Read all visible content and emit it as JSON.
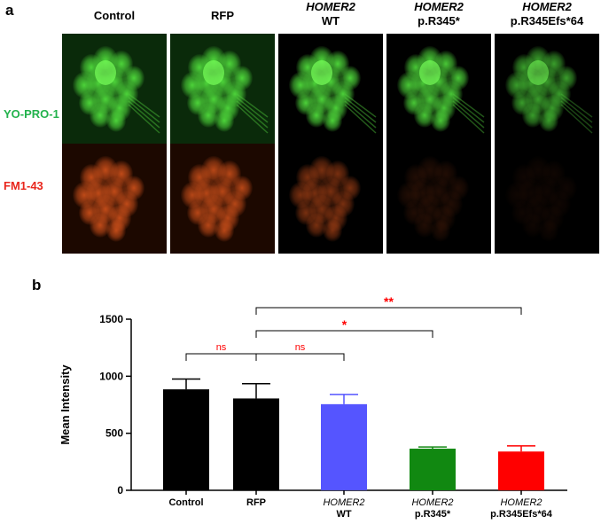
{
  "panel_a": {
    "letter": "a",
    "columns": [
      {
        "line1": "Control",
        "line2": "",
        "italic1": false
      },
      {
        "line1": "RFP",
        "line2": "",
        "italic1": false
      },
      {
        "line1": "HOMER2",
        "line2": "WT",
        "italic1": true
      },
      {
        "line1": "HOMER2",
        "line2": "p.R345*",
        "italic1": true
      },
      {
        "line1": "HOMER2",
        "line2": "p.R345Efs*64",
        "italic1": true
      }
    ],
    "rows": [
      {
        "label": "YO-PRO-1",
        "color": "#22b24c"
      },
      {
        "label": "FM1-43",
        "color": "#e8261c"
      }
    ],
    "intensity_green": [
      1.0,
      1.0,
      1.0,
      0.95,
      0.75
    ],
    "intensity_red": [
      0.85,
      0.8,
      0.55,
      0.15,
      0.07
    ]
  },
  "panel_b": {
    "letter": "b"
  },
  "chart_data": {
    "type": "bar",
    "ylabel": "Mean Intensity",
    "ylim": [
      0,
      1500
    ],
    "yticks": [
      0,
      500,
      1000,
      1500
    ],
    "categories": [
      {
        "line1": "Control",
        "line2": "",
        "italic1": false
      },
      {
        "line1": "RFP",
        "line2": "",
        "italic1": false
      },
      {
        "line1": "HOMER2",
        "line2": "WT",
        "italic1": true
      },
      {
        "line1": "HOMER2",
        "line2": "p.R345*",
        "italic1": true
      },
      {
        "line1": "HOMER2",
        "line2": "p.R345Efs*64",
        "italic1": true
      }
    ],
    "values": [
      885,
      805,
      755,
      365,
      340
    ],
    "errors": [
      90,
      130,
      85,
      15,
      50
    ],
    "colors": [
      "#000000",
      "#000000",
      "#5555ff",
      "#118811",
      "#ff0000"
    ],
    "significance": [
      {
        "from": 0,
        "to": 1,
        "label": "ns",
        "level": 0
      },
      {
        "from": 1,
        "to": 2,
        "label": "ns",
        "level": 0
      },
      {
        "from": 1,
        "to": 3,
        "label": "*",
        "level": 1
      },
      {
        "from": 1,
        "to": 4,
        "label": "**",
        "level": 2
      }
    ],
    "sig_color": "#ff0000"
  }
}
